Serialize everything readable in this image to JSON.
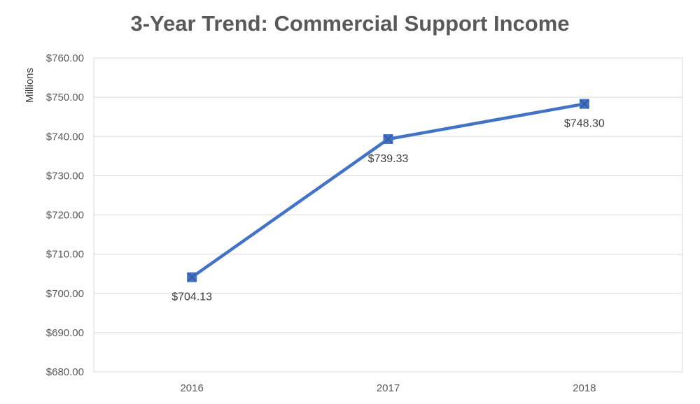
{
  "chart_data": {
    "type": "line",
    "title": "3-Year Trend: Commercial Support Income",
    "ylabel": "Millions",
    "xlabel": "",
    "categories": [
      "2016",
      "2017",
      "2018"
    ],
    "series": [
      {
        "values": [
          704.13,
          739.33,
          748.3
        ]
      }
    ],
    "data_labels": [
      "$704.13",
      "$739.33",
      "$748.30"
    ],
    "ylim": [
      680,
      760
    ],
    "y_step": 10,
    "y_tick_labels": [
      "$680.00",
      "$690.00",
      "$700.00",
      "$710.00",
      "$720.00",
      "$730.00",
      "$740.00",
      "$750.00",
      "$760.00"
    ],
    "grid": true,
    "legend": "none",
    "marker": "square-x",
    "colors": {
      "line": "#4472C4",
      "grid": "#D9D9D9",
      "text": "#595959"
    }
  }
}
